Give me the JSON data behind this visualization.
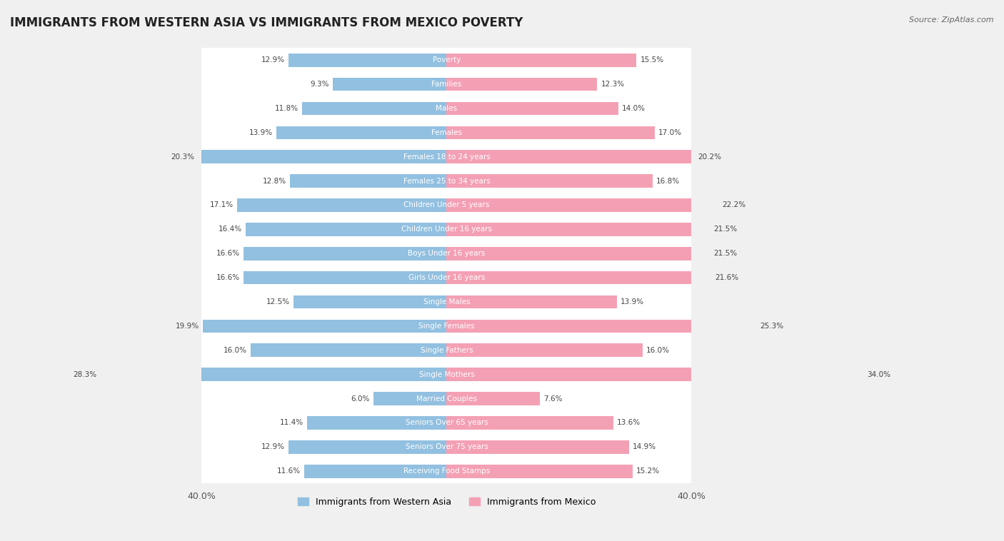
{
  "title": "IMMIGRANTS FROM WESTERN ASIA VS IMMIGRANTS FROM MEXICO POVERTY",
  "source": "Source: ZipAtlas.com",
  "categories": [
    "Poverty",
    "Families",
    "Males",
    "Females",
    "Females 18 to 24 years",
    "Females 25 to 34 years",
    "Children Under 5 years",
    "Children Under 16 years",
    "Boys Under 16 years",
    "Girls Under 16 years",
    "Single Males",
    "Single Females",
    "Single Fathers",
    "Single Mothers",
    "Married Couples",
    "Seniors Over 65 years",
    "Seniors Over 75 years",
    "Receiving Food Stamps"
  ],
  "western_asia": [
    12.9,
    9.3,
    11.8,
    13.9,
    20.3,
    12.8,
    17.1,
    16.4,
    16.6,
    16.6,
    12.5,
    19.9,
    16.0,
    28.3,
    6.0,
    11.4,
    12.9,
    11.6
  ],
  "mexico": [
    15.5,
    12.3,
    14.0,
    17.0,
    20.2,
    16.8,
    22.2,
    21.5,
    21.5,
    21.6,
    13.9,
    25.3,
    16.0,
    34.0,
    7.6,
    13.6,
    14.9,
    15.2
  ],
  "color_western_asia": "#92c0e0",
  "color_mexico": "#f4a0b4",
  "xlim": [
    0,
    40
  ],
  "background_color": "#f0f0f0",
  "bar_background": "#ffffff",
  "legend_label_west": "Immigrants from Western Asia",
  "legend_label_mexico": "Immigrants from Mexico"
}
